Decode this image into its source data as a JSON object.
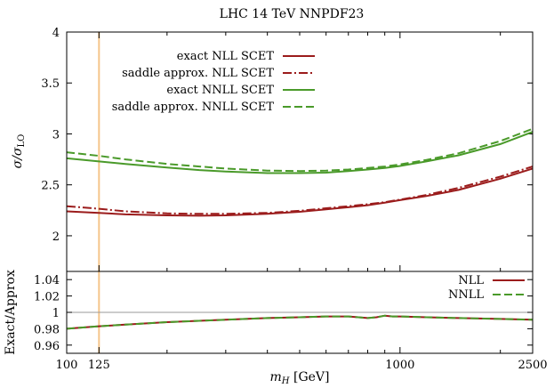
{
  "chart_data": [
    {
      "panel": "main",
      "type": "line",
      "title": "LHC 14 TeV NNPDF23",
      "xlabel": "m_H [GeV]",
      "ylabel": "σ/σ_LO",
      "xscale": "log",
      "xlim": [
        100,
        2500
      ],
      "ylim": [
        1.65,
        4
      ],
      "xticks": [
        100,
        125,
        1000,
        2500
      ],
      "yticks": [
        2,
        2.5,
        3,
        3.5,
        4
      ],
      "legend_position": "top-left",
      "marker_line": {
        "x": 125,
        "color": "#f5c58a"
      },
      "x": [
        100,
        125,
        150,
        200,
        250,
        300,
        400,
        500,
        600,
        700,
        800,
        900,
        1000,
        1200,
        1500,
        2000,
        2500
      ],
      "series": [
        {
          "name": "exact NLL SCET",
          "style": "solid",
          "color": "#9b1c1c",
          "values": [
            2.24,
            2.225,
            2.21,
            2.2,
            2.197,
            2.2,
            2.215,
            2.235,
            2.26,
            2.28,
            2.3,
            2.325,
            2.35,
            2.39,
            2.45,
            2.56,
            2.66
          ]
        },
        {
          "name": "saddle approx. NLL SCET",
          "style": "dashdot",
          "color": "#9b1c1c",
          "values": [
            2.29,
            2.265,
            2.24,
            2.22,
            2.215,
            2.215,
            2.225,
            2.245,
            2.27,
            2.29,
            2.31,
            2.33,
            2.355,
            2.4,
            2.47,
            2.58,
            2.68
          ]
        },
        {
          "name": "exact NNLL SCET",
          "style": "solid",
          "color": "#4a9a2a",
          "values": [
            2.76,
            2.73,
            2.705,
            2.67,
            2.645,
            2.63,
            2.615,
            2.615,
            2.62,
            2.635,
            2.65,
            2.665,
            2.685,
            2.73,
            2.79,
            2.9,
            3.02
          ]
        },
        {
          "name": "saddle approx. NNLL SCET",
          "style": "dashed",
          "color": "#4a9a2a",
          "values": [
            2.82,
            2.785,
            2.75,
            2.705,
            2.68,
            2.66,
            2.64,
            2.635,
            2.64,
            2.65,
            2.665,
            2.68,
            2.7,
            2.745,
            2.81,
            2.93,
            3.05
          ]
        }
      ]
    },
    {
      "panel": "ratio",
      "type": "line",
      "xlabel": "m_H [GeV]",
      "ylabel": "Exact/Approx",
      "xscale": "log",
      "xlim": [
        100,
        2500
      ],
      "ylim": [
        0.95,
        1.05
      ],
      "yticks": [
        0.96,
        0.98,
        1,
        1.02,
        1.04
      ],
      "legend_position": "top-right",
      "reference_line": 1,
      "x": [
        100,
        125,
        150,
        200,
        300,
        400,
        500,
        600,
        700,
        750,
        800,
        850,
        900,
        950,
        1000,
        1200,
        1500,
        2000,
        2500
      ],
      "series": [
        {
          "name": "NLL",
          "style": "solid",
          "color": "#9b1c1c",
          "values": [
            0.98,
            0.983,
            0.985,
            0.988,
            0.991,
            0.993,
            0.994,
            0.995,
            0.995,
            0.994,
            0.993,
            0.994,
            0.996,
            0.995,
            0.995,
            0.994,
            0.993,
            0.992,
            0.991
          ]
        },
        {
          "name": "NNLL",
          "style": "dashed",
          "color": "#4a9a2a",
          "values": [
            0.98,
            0.983,
            0.985,
            0.988,
            0.991,
            0.993,
            0.994,
            0.995,
            0.995,
            0.994,
            0.993,
            0.994,
            0.996,
            0.995,
            0.995,
            0.994,
            0.993,
            0.992,
            0.991
          ]
        }
      ]
    }
  ],
  "labels": {
    "title": "LHC 14 TeV NNPDF23",
    "ylabel_main_symbol": "σ/σ",
    "ylabel_main_sub": "LO",
    "ylabel_ratio": "Exact/Approx",
    "xlabel_var": "m",
    "xlabel_sub": "H",
    "xlabel_unit": " [GeV]",
    "x_tick_labels": [
      "100",
      "125",
      "1000",
      "2500"
    ],
    "main_y_tick_labels": [
      "2",
      "2.5",
      "3",
      "3.5",
      "4"
    ],
    "ratio_y_tick_labels": [
      "0.96",
      "0.98",
      "1",
      "1.02",
      "1.04"
    ]
  }
}
